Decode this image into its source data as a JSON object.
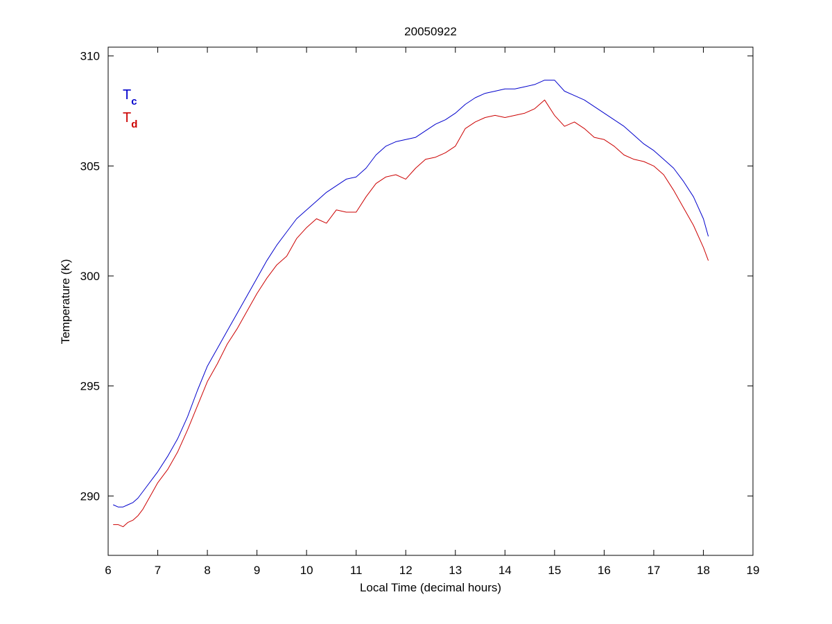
{
  "chart_data": {
    "type": "line",
    "title": "20050922",
    "xlabel": "Local Time (decimal hours)",
    "ylabel": "Temperature (K)",
    "xlim": [
      6,
      19
    ],
    "ylim": [
      287.3,
      310.4
    ],
    "xticks": [
      6,
      7,
      8,
      9,
      10,
      11,
      12,
      13,
      14,
      15,
      16,
      17,
      18,
      19
    ],
    "yticks": [
      290,
      295,
      300,
      305,
      310
    ],
    "grid": false,
    "legend_position": "top-left",
    "series": [
      {
        "name_main": "T",
        "name_sub": "c",
        "color": "#0000cc",
        "x": [
          6.1,
          6.2,
          6.3,
          6.4,
          6.5,
          6.6,
          6.7,
          6.8,
          6.9,
          7.0,
          7.2,
          7.4,
          7.6,
          7.8,
          8.0,
          8.2,
          8.4,
          8.6,
          8.8,
          9.0,
          9.2,
          9.4,
          9.6,
          9.8,
          10.0,
          10.2,
          10.4,
          10.6,
          10.8,
          11.0,
          11.2,
          11.4,
          11.6,
          11.8,
          12.0,
          12.2,
          12.4,
          12.6,
          12.8,
          13.0,
          13.2,
          13.4,
          13.6,
          13.8,
          14.0,
          14.2,
          14.4,
          14.6,
          14.8,
          15.0,
          15.2,
          15.4,
          15.6,
          15.8,
          16.0,
          16.2,
          16.4,
          16.6,
          16.8,
          17.0,
          17.2,
          17.4,
          17.6,
          17.8,
          18.0,
          18.1
        ],
        "y": [
          289.6,
          289.5,
          289.5,
          289.6,
          289.7,
          289.9,
          290.2,
          290.5,
          290.8,
          291.1,
          291.8,
          292.6,
          293.6,
          294.8,
          295.9,
          296.7,
          297.5,
          298.3,
          299.1,
          299.9,
          300.7,
          301.4,
          302.0,
          302.6,
          303.0,
          303.4,
          303.8,
          304.1,
          304.4,
          304.5,
          304.9,
          305.5,
          305.9,
          306.1,
          306.2,
          306.3,
          306.6,
          306.9,
          307.1,
          307.4,
          307.8,
          308.1,
          308.3,
          308.4,
          308.5,
          308.5,
          308.6,
          308.7,
          308.9,
          308.9,
          308.4,
          308.2,
          308.0,
          307.7,
          307.4,
          307.1,
          306.8,
          306.4,
          306.0,
          305.7,
          305.3,
          304.9,
          304.3,
          303.6,
          302.6,
          301.8
        ]
      },
      {
        "name_main": "T",
        "name_sub": "d",
        "color": "#cc0000",
        "x": [
          6.1,
          6.2,
          6.3,
          6.4,
          6.5,
          6.6,
          6.7,
          6.8,
          6.9,
          7.0,
          7.2,
          7.4,
          7.6,
          7.8,
          8.0,
          8.2,
          8.4,
          8.6,
          8.8,
          9.0,
          9.2,
          9.4,
          9.6,
          9.8,
          10.0,
          10.2,
          10.4,
          10.6,
          10.8,
          11.0,
          11.2,
          11.4,
          11.6,
          11.8,
          12.0,
          12.2,
          12.4,
          12.6,
          12.8,
          13.0,
          13.2,
          13.4,
          13.6,
          13.8,
          14.0,
          14.2,
          14.4,
          14.6,
          14.8,
          15.0,
          15.2,
          15.4,
          15.6,
          15.8,
          16.0,
          16.2,
          16.4,
          16.6,
          16.8,
          17.0,
          17.2,
          17.4,
          17.6,
          17.8,
          18.0,
          18.1
        ],
        "y": [
          288.7,
          288.7,
          288.6,
          288.8,
          288.9,
          289.1,
          289.4,
          289.8,
          290.2,
          290.6,
          291.2,
          292.0,
          293.0,
          294.1,
          295.2,
          296.0,
          296.9,
          297.6,
          298.4,
          299.2,
          299.9,
          300.5,
          300.9,
          301.7,
          302.2,
          302.6,
          302.4,
          303.0,
          302.9,
          302.9,
          303.6,
          304.2,
          304.5,
          304.6,
          304.4,
          304.9,
          305.3,
          305.4,
          305.6,
          305.9,
          306.7,
          307.0,
          307.2,
          307.3,
          307.2,
          307.3,
          307.4,
          307.6,
          308.0,
          307.3,
          306.8,
          307.0,
          306.7,
          306.3,
          306.2,
          305.9,
          305.5,
          305.3,
          305.2,
          305.0,
          304.6,
          303.9,
          303.1,
          302.3,
          301.3,
          300.7
        ]
      }
    ]
  }
}
